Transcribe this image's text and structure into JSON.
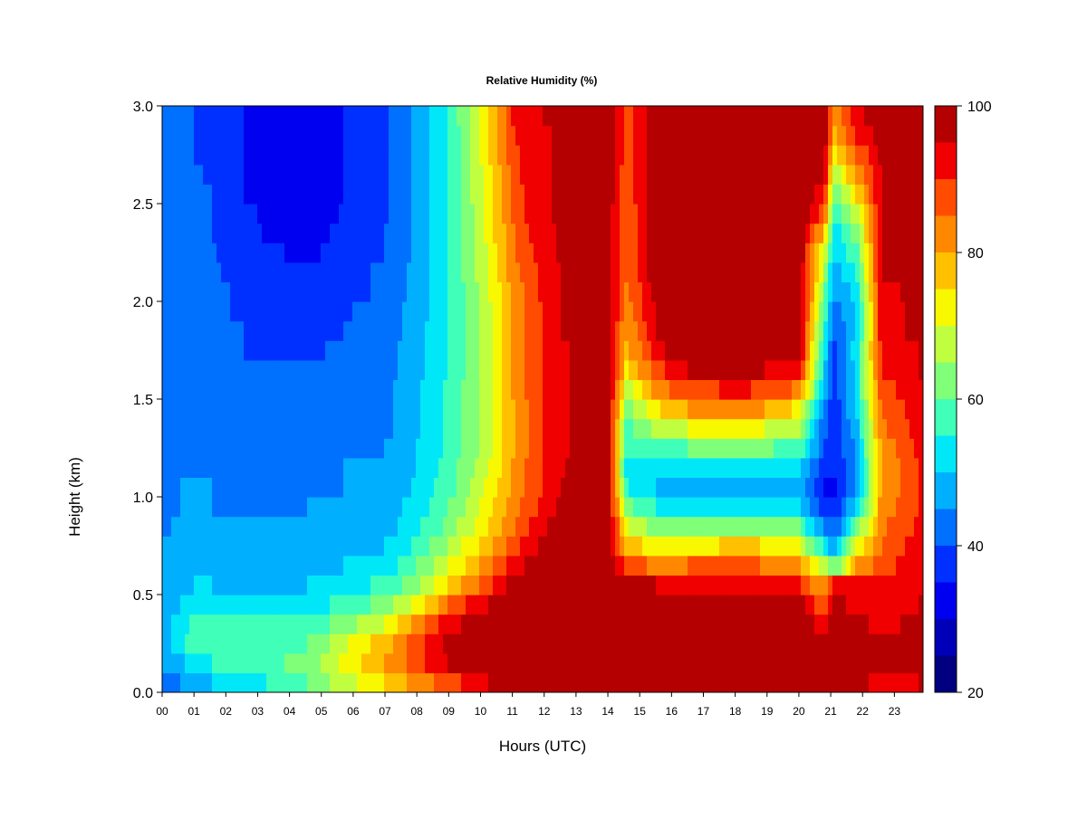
{
  "chart_data": {
    "type": "heatmap",
    "title": "Relative Humidity (%)",
    "xlabel": "Hours (UTC)",
    "ylabel": "Height (km)",
    "xlim": [
      0,
      23.9
    ],
    "ylim": [
      0.0,
      3.0
    ],
    "x_tick_labels": [
      "00",
      "01",
      "02",
      "03",
      "04",
      "05",
      "06",
      "07",
      "08",
      "09",
      "10",
      "11",
      "12",
      "13",
      "14",
      "15",
      "16",
      "17",
      "18",
      "19",
      "20",
      "21",
      "22",
      "23"
    ],
    "y_tick_labels": [
      "0.0",
      "0.5",
      "1.0",
      "1.5",
      "2.0",
      "2.5",
      "3.0"
    ],
    "y_tick_values": [
      0.0,
      0.5,
      1.0,
      1.5,
      2.0,
      2.5,
      3.0
    ],
    "colorbar": {
      "range": [
        20,
        100
      ],
      "step": 5,
      "tick_labels": [
        "20",
        "40",
        "60",
        "80",
        "100"
      ],
      "tick_values": [
        20,
        40,
        60,
        80,
        100
      ],
      "colors": [
        "#000080",
        "#0000b8",
        "#0000f0",
        "#0030ff",
        "#0070ff",
        "#00b0ff",
        "#00e8f8",
        "#40ffb8",
        "#80ff78",
        "#c0ff40",
        "#f8f800",
        "#ffc000",
        "#ff8800",
        "#ff4c00",
        "#f00000",
        "#b40000"
      ]
    },
    "x": [
      0.0,
      0.5,
      1.0,
      1.5,
      2.0,
      2.5,
      3.0,
      3.5,
      4.0,
      4.5,
      5.0,
      5.5,
      6.0,
      6.5,
      7.0,
      7.5,
      8.0,
      8.5,
      9.0,
      9.5,
      10.0,
      10.5,
      11.0,
      11.5,
      12.0,
      12.5,
      13.0,
      13.5,
      14.0,
      14.5,
      15.0,
      15.5,
      16.0,
      16.5,
      17.0,
      17.5,
      18.0,
      18.5,
      19.0,
      19.5,
      20.0,
      20.5,
      21.0,
      21.5,
      22.0,
      22.5,
      23.0,
      23.5
    ],
    "y": [
      0.0,
      0.1,
      0.2,
      0.3,
      0.4,
      0.5,
      0.6,
      0.7,
      0.8,
      0.9,
      1.0,
      1.1,
      1.2,
      1.3,
      1.4,
      1.5,
      1.6,
      1.7,
      1.8,
      1.9,
      2.0,
      2.1,
      2.2,
      2.3,
      2.4,
      2.5,
      2.6,
      2.7,
      2.8,
      2.9
    ],
    "z": [
      [
        44,
        45,
        48,
        50,
        52,
        60,
        75,
        82,
        88,
        93,
        96,
        97,
        97,
        98,
        99,
        100,
        100,
        100,
        100,
        100,
        100,
        100,
        100,
        96,
        99,
        96,
        94,
        95
      ],
      [
        46,
        48,
        52,
        55,
        56,
        62,
        80,
        88,
        95,
        98,
        100,
        100,
        100,
        100,
        100,
        100,
        100,
        100,
        100,
        100,
        100,
        100,
        100,
        98,
        100,
        98,
        96,
        97
      ],
      [
        48,
        52,
        58,
        60,
        58,
        60,
        78,
        88,
        96,
        100,
        100,
        100,
        100,
        100,
        100,
        100,
        100,
        100,
        100,
        100,
        100,
        100,
        100,
        96,
        100,
        98,
        96,
        97
      ],
      [
        48,
        52,
        56,
        58,
        55,
        56,
        70,
        82,
        93,
        98,
        100,
        100,
        100,
        100,
        100,
        100,
        100,
        100,
        100,
        100,
        100,
        100,
        100,
        92,
        100,
        96,
        94,
        96
      ],
      [
        48,
        50,
        52,
        54,
        52,
        52,
        62,
        72,
        85,
        92,
        97,
        99,
        100,
        100,
        100,
        100,
        100,
        100,
        100,
        100,
        100,
        100,
        100,
        85,
        97,
        93,
        92,
        95
      ],
      [
        47,
        49,
        50,
        50,
        49,
        50,
        56,
        64,
        75,
        84,
        92,
        96,
        99,
        100,
        100,
        100,
        100,
        96,
        95,
        94,
        93,
        92,
        90,
        80,
        90,
        90,
        90,
        94
      ],
      [
        46,
        48,
        48,
        48,
        47,
        48,
        52,
        60,
        70,
        78,
        86,
        92,
        96,
        99,
        100,
        100,
        100,
        88,
        84,
        85,
        86,
        86,
        80,
        68,
        60,
        80,
        88,
        93
      ],
      [
        45,
        47,
        47,
        47,
        46,
        47,
        50,
        56,
        65,
        74,
        82,
        88,
        93,
        97,
        100,
        100,
        100,
        78,
        72,
        74,
        75,
        76,
        70,
        55,
        45,
        70,
        86,
        92
      ],
      [
        44,
        46,
        46,
        46,
        45,
        46,
        48,
        54,
        62,
        70,
        78,
        84,
        90,
        94,
        98,
        99,
        100,
        70,
        62,
        62,
        63,
        65,
        60,
        45,
        40,
        60,
        84,
        91
      ],
      [
        44,
        45,
        45,
        45,
        44,
        45,
        47,
        52,
        60,
        68,
        76,
        82,
        88,
        92,
        96,
        98,
        99,
        62,
        55,
        52,
        52,
        54,
        52,
        38,
        36,
        52,
        82,
        90
      ],
      [
        43,
        45,
        45,
        45,
        44,
        44,
        46,
        51,
        58,
        66,
        74,
        80,
        86,
        91,
        95,
        97,
        99,
        55,
        50,
        48,
        48,
        50,
        48,
        35,
        34,
        46,
        80,
        90
      ],
      [
        43,
        44,
        44,
        44,
        43,
        44,
        46,
        50,
        57,
        65,
        73,
        80,
        86,
        90,
        94,
        97,
        99,
        52,
        52,
        52,
        53,
        55,
        52,
        38,
        35,
        45,
        80,
        90
      ],
      [
        43,
        44,
        44,
        44,
        43,
        43,
        45,
        50,
        56,
        64,
        72,
        79,
        85,
        90,
        94,
        96,
        98,
        55,
        58,
        60,
        62,
        62,
        58,
        40,
        36,
        46,
        82,
        91
      ],
      [
        42,
        43,
        44,
        44,
        42,
        42,
        44,
        49,
        56,
        64,
        72,
        79,
        85,
        90,
        94,
        96,
        98,
        58,
        66,
        70,
        72,
        72,
        65,
        42,
        36,
        48,
        84,
        92
      ],
      [
        42,
        43,
        44,
        44,
        42,
        42,
        44,
        49,
        56,
        63,
        72,
        79,
        85,
        90,
        94,
        96,
        98,
        62,
        74,
        80,
        82,
        82,
        74,
        45,
        36,
        50,
        86,
        93
      ],
      [
        42,
        43,
        44,
        44,
        41,
        41,
        44,
        49,
        56,
        63,
        72,
        80,
        86,
        90,
        94,
        96,
        98,
        68,
        82,
        88,
        90,
        90,
        84,
        48,
        37,
        52,
        88,
        94
      ],
      [
        41,
        42,
        43,
        43,
        41,
        40,
        43,
        48,
        55,
        63,
        72,
        80,
        86,
        90,
        94,
        96,
        98,
        74,
        88,
        95,
        97,
        96,
        92,
        50,
        38,
        52,
        90,
        95
      ],
      [
        41,
        42,
        43,
        43,
        40,
        39,
        43,
        48,
        55,
        63,
        72,
        80,
        86,
        90,
        94,
        96,
        98,
        78,
        93,
        99,
        100,
        100,
        98,
        52,
        39,
        52,
        92,
        95
      ],
      [
        41,
        42,
        43,
        43,
        40,
        38,
        42,
        48,
        55,
        63,
        72,
        80,
        86,
        91,
        95,
        96,
        98,
        80,
        95,
        100,
        100,
        100,
        100,
        55,
        40,
        50,
        93,
        96
      ],
      [
        41,
        42,
        43,
        42,
        39,
        37,
        42,
        47,
        55,
        63,
        72,
        80,
        86,
        91,
        95,
        96,
        98,
        82,
        96,
        100,
        100,
        100,
        100,
        58,
        42,
        50,
        93,
        96
      ],
      [
        40,
        41,
        42,
        42,
        39,
        36,
        41,
        47,
        55,
        63,
        73,
        81,
        87,
        91,
        95,
        96,
        98,
        84,
        97,
        100,
        100,
        100,
        100,
        62,
        45,
        52,
        94,
        96
      ],
      [
        40,
        41,
        42,
        41,
        38,
        35,
        41,
        47,
        55,
        64,
        74,
        82,
        88,
        92,
        95,
        96,
        98,
        85,
        98,
        100,
        100,
        100,
        100,
        66,
        48,
        55,
        95,
        97
      ],
      [
        40,
        41,
        41,
        41,
        37,
        34,
        40,
        46,
        55,
        64,
        75,
        83,
        89,
        92,
        96,
        97,
        98,
        86,
        98,
        100,
        98,
        100,
        100,
        70,
        50,
        58,
        95,
        97
      ],
      [
        40,
        40,
        41,
        40,
        36,
        33,
        40,
        46,
        55,
        64,
        76,
        84,
        90,
        93,
        96,
        97,
        98,
        86,
        98,
        100,
        98,
        100,
        100,
        78,
        52,
        62,
        96,
        97
      ],
      [
        40,
        40,
        41,
        40,
        36,
        32,
        39,
        46,
        55,
        65,
        77,
        85,
        91,
        94,
        96,
        97,
        98,
        86,
        99,
        100,
        100,
        100,
        100,
        86,
        55,
        68,
        96,
        97
      ],
      [
        40,
        40,
        41,
        40,
        35,
        31,
        39,
        46,
        56,
        66,
        78,
        86,
        92,
        94,
        96,
        97,
        98,
        87,
        99,
        100,
        100,
        100,
        100,
        92,
        60,
        74,
        96,
        97
      ],
      [
        40,
        40,
        41,
        39,
        35,
        31,
        39,
        46,
        56,
        66,
        78,
        87,
        92,
        94,
        96,
        97,
        98,
        87,
        99,
        100,
        100,
        100,
        100,
        96,
        66,
        80,
        96,
        97
      ],
      [
        40,
        40,
        40,
        39,
        35,
        31,
        39,
        46,
        56,
        66,
        79,
        88,
        93,
        94,
        96,
        97,
        98,
        88,
        99,
        100,
        100,
        100,
        100,
        98,
        72,
        85,
        96,
        97
      ],
      [
        40,
        40,
        40,
        39,
        35,
        31,
        39,
        46,
        56,
        66,
        80,
        89,
        93,
        94,
        96,
        97,
        98,
        88,
        99,
        100,
        100,
        100,
        100,
        100,
        78,
        90,
        97,
        97
      ],
      [
        40,
        40,
        40,
        39,
        35,
        31,
        39,
        46,
        56,
        67,
        80,
        90,
        94,
        95,
        96,
        97,
        98,
        88,
        99,
        100,
        100,
        100,
        100,
        100,
        82,
        94,
        97,
        97
      ]
    ],
    "z_x": [
      0.0,
      0.5,
      1.0,
      1.5,
      2.5,
      4.5,
      7.0,
      8.0,
      9.0,
      9.8,
      10.5,
      11.0,
      11.5,
      12.0,
      12.5,
      13.0,
      14.0,
      14.6,
      15.5,
      16.5,
      17.5,
      18.5,
      20.0,
      20.8,
      21.1,
      21.8,
      22.6,
      23.8
    ]
  }
}
